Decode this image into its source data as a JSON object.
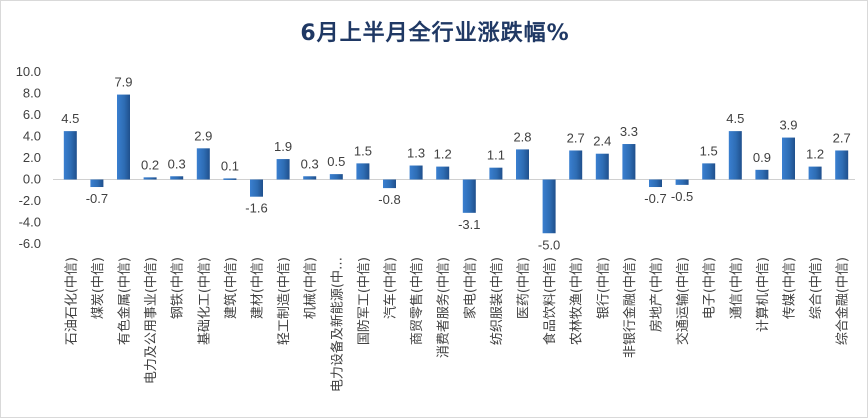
{
  "chart_data": {
    "type": "bar",
    "title": "6月上半月全行业涨跌幅%",
    "xlabel": "",
    "ylabel": "",
    "ylim": [
      -6,
      10
    ],
    "yticks": [
      "10.0",
      "8.0",
      "6.0",
      "4.0",
      "2.0",
      "0.0",
      "-2.0",
      "-4.0",
      "-6.0"
    ],
    "grid": false,
    "legend": "none",
    "bar_color": "#2e6db4",
    "categories": [
      "石油石化(中信)",
      "煤炭(中信)",
      "有色金属(中信)",
      "电力及公用事业(中信)",
      "钢铁(中信)",
      "基础化工(中信)",
      "建筑(中信)",
      "建材(中信)",
      "轻工制造(中信)",
      "机械(中信)",
      "电力设备及新能源(中…",
      "国防军工(中信)",
      "汽车(中信)",
      "商贸零售(中信)",
      "消费者服务(中信)",
      "家电(中信)",
      "纺织服装(中信)",
      "医药(中信)",
      "食品饮料(中信)",
      "农林牧渔(中信)",
      "银行(中信)",
      "非银行金融(中信)",
      "房地产(中信)",
      "交通运输(中信)",
      "电子(中信)",
      "通信(中信)",
      "计算机(中信)",
      "传媒(中信)",
      "综合(中信)",
      "综合金融(中信)"
    ],
    "values": [
      4.5,
      -0.7,
      7.9,
      0.2,
      0.3,
      2.9,
      0.1,
      -1.6,
      1.9,
      0.3,
      0.5,
      1.5,
      -0.8,
      1.3,
      1.2,
      -3.1,
      1.1,
      2.8,
      -5.0,
      2.7,
      2.4,
      3.3,
      -0.7,
      -0.5,
      1.5,
      4.5,
      0.9,
      3.9,
      1.2,
      2.7
    ],
    "data_labels": [
      "4.5",
      "-0.7",
      "7.9",
      "0.2",
      "0.3",
      "2.9",
      "0.1",
      "-1.6",
      "1.9",
      "0.3",
      "0.5",
      "1.5",
      "-0.8",
      "1.3",
      "1.2",
      "-3.1",
      "1.1",
      "2.8",
      "-5.0",
      "2.7",
      "2.4",
      "3.3",
      "-0.7",
      "-0.5",
      "1.5",
      "4.5",
      "0.9",
      "3.9",
      "1.2",
      "2.7"
    ]
  }
}
